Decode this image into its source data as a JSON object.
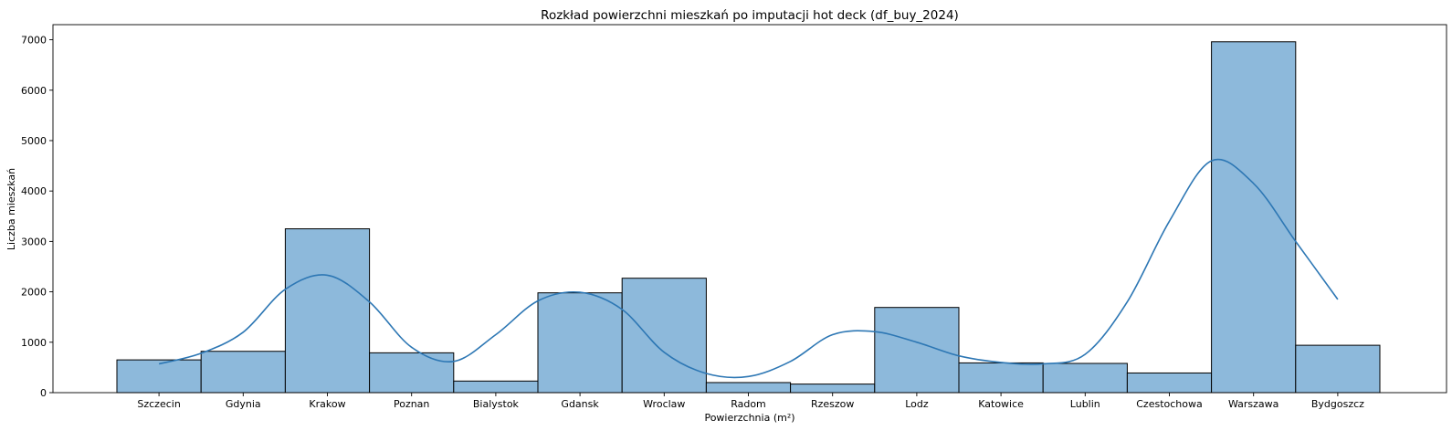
{
  "chart_data": {
    "type": "bar",
    "title": "Rozkład powierzchni mieszkań po imputacji hot deck (df_buy_2024)",
    "xlabel": "Powierzchnia (m²)",
    "ylabel": "Liczba mieszkań",
    "categories": [
      "Szczecin",
      "Gdynia",
      "Krakow",
      "Poznan",
      "Bialystok",
      "Gdansk",
      "Wroclaw",
      "Radom",
      "Rzeszow",
      "Lodz",
      "Katowice",
      "Lublin",
      "Czestochowa",
      "Warszawa",
      "Bydgoszcz"
    ],
    "values": [
      650,
      820,
      3250,
      790,
      230,
      1980,
      2270,
      200,
      170,
      1690,
      590,
      580,
      390,
      6960,
      940
    ],
    "ylim": [
      0,
      7300
    ],
    "yticks": [
      0,
      1000,
      2000,
      3000,
      4000,
      5000,
      6000,
      7000
    ],
    "kde": {
      "x": [
        0,
        0.5,
        1,
        1.5,
        2,
        2.5,
        3,
        3.5,
        4,
        4.5,
        5,
        5.5,
        6,
        6.5,
        7,
        7.5,
        8,
        8.5,
        9,
        9.5,
        10,
        10.5,
        11,
        11.5,
        12,
        12.5,
        13,
        13.5,
        14
      ],
      "values": [
        570,
        780,
        1200,
        2050,
        2330,
        1800,
        900,
        620,
        1150,
        1820,
        1990,
        1650,
        800,
        380,
        320,
        620,
        1150,
        1210,
        1000,
        730,
        600,
        570,
        760,
        1800,
        3400,
        4600,
        4150,
        3000,
        1850
      ]
    },
    "colors": {
      "bar_fill": "#8db9db",
      "bar_edge": "#000000",
      "kde_line": "#2d77b4"
    },
    "grid": false
  }
}
